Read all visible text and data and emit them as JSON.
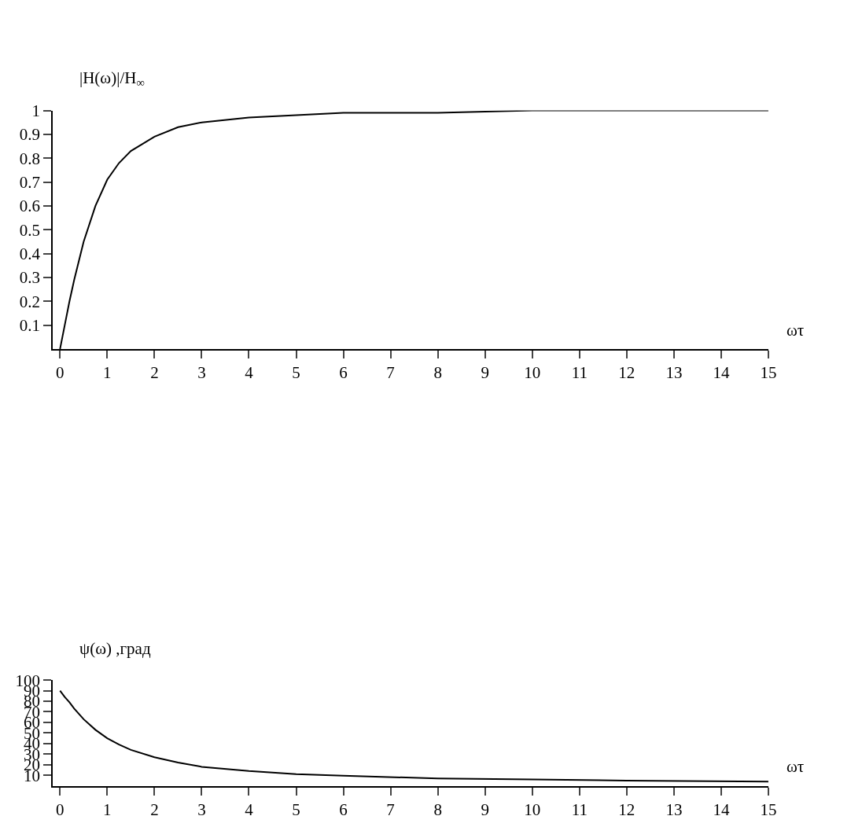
{
  "chart_data": [
    {
      "type": "line",
      "ylabel": "|H(ω)|/H$_{∞}$",
      "xlabel": "ωτ",
      "xlim": [
        -0.15,
        15
      ],
      "ylim": [
        0,
        1
      ],
      "xticks": [
        0,
        1,
        2,
        3,
        4,
        5,
        6,
        7,
        8,
        9,
        10,
        11,
        12,
        13,
        14,
        15
      ],
      "yticks": [
        0.1,
        0.2,
        0.3,
        0.4,
        0.5,
        0.6,
        0.7,
        0.8,
        0.9,
        1
      ],
      "marker": "none",
      "line_style": "solid",
      "series": [
        {
          "color": "#000000",
          "x": [
            0,
            0.1,
            0.2,
            0.3,
            0.5,
            0.75,
            1,
            1.25,
            1.5,
            2,
            2.5,
            3,
            4,
            5,
            6,
            8,
            10,
            12,
            15
          ],
          "values": [
            0,
            0.1,
            0.2,
            0.29,
            0.45,
            0.6,
            0.71,
            0.78,
            0.83,
            0.89,
            0.93,
            0.95,
            0.97,
            0.98,
            0.99,
            0.99,
            1.0,
            1.0,
            1.0
          ]
        }
      ]
    },
    {
      "type": "line",
      "ylabel": "ψ(ω) ,град",
      "xlabel": "ωτ",
      "xlim": [
        -0.15,
        15
      ],
      "ylim": [
        0,
        100
      ],
      "xticks": [
        0,
        1,
        2,
        3,
        4,
        5,
        6,
        7,
        8,
        9,
        10,
        11,
        12,
        13,
        14,
        15
      ],
      "yticks": [
        10,
        20,
        30,
        40,
        50,
        60,
        70,
        80,
        90,
        100
      ],
      "marker": "none",
      "line_style": "solid",
      "series": [
        {
          "color": "#000000",
          "x": [
            0,
            0.1,
            0.2,
            0.3,
            0.5,
            0.75,
            1,
            1.25,
            1.5,
            2,
            2.5,
            3,
            4,
            5,
            6,
            8,
            10,
            12,
            15
          ],
          "values": [
            90,
            84,
            79,
            73,
            63,
            53,
            45,
            39,
            34,
            27,
            22,
            18,
            14,
            11,
            9.5,
            7,
            6,
            5,
            4
          ]
        }
      ]
    }
  ]
}
